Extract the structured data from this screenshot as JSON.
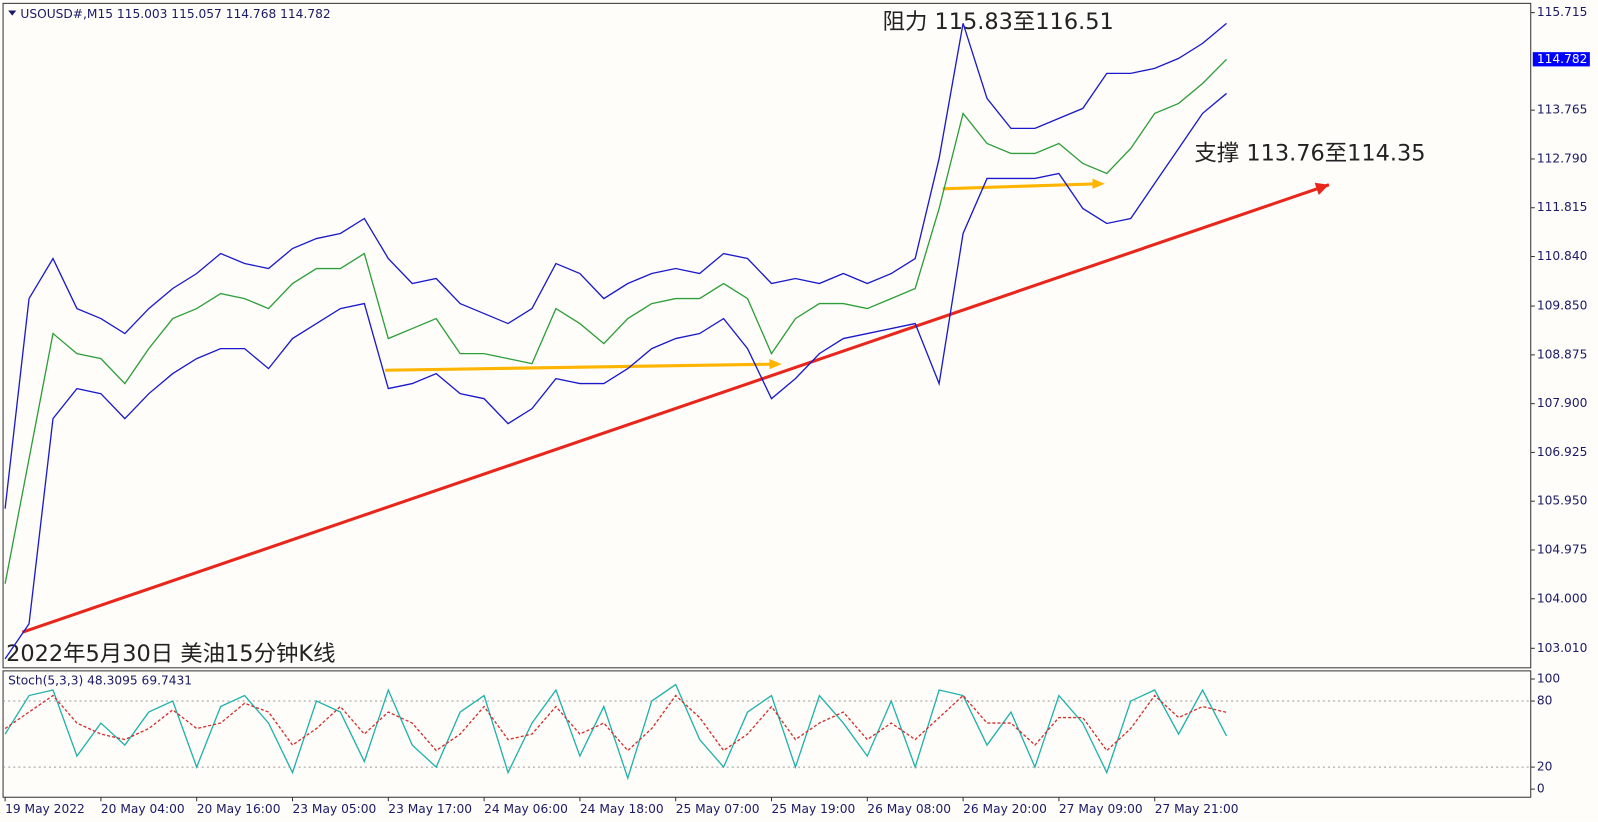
{
  "chart_data": [
    {
      "type": "line",
      "title": "USOUSD#,M15  115.003 115.057 114.768 114.782",
      "annotations": [
        "阻力 115.83至116.51",
        "支撑 113.76至114.35",
        "2022年5月30日 美油15分钟K线"
      ],
      "last_price": 114.782,
      "x": [
        0,
        1,
        2,
        3,
        4,
        5,
        6,
        7,
        8,
        9,
        10,
        11,
        12,
        13,
        14,
        15,
        16,
        17,
        18,
        19,
        20,
        21,
        22,
        23,
        24,
        25,
        26,
        27,
        28,
        29,
        30,
        31,
        32,
        33,
        34,
        35,
        36,
        37,
        38,
        39,
        40,
        41,
        42,
        43,
        44,
        45,
        46,
        47,
        48,
        49,
        50,
        51
      ],
      "xlim": [
        0,
        63.7
      ],
      "xticks": [
        {
          "value": 0,
          "label": "19 May 2022"
        },
        {
          "value": 4,
          "label": "20 May 04:00"
        },
        {
          "value": 8,
          "label": "20 May 16:00"
        },
        {
          "value": 12,
          "label": "23 May 05:00"
        },
        {
          "value": 16,
          "label": "23 May 17:00"
        },
        {
          "value": 20,
          "label": "24 May 06:00"
        },
        {
          "value": 24,
          "label": "24 May 18:00"
        },
        {
          "value": 28,
          "label": "25 May 07:00"
        },
        {
          "value": 32,
          "label": "25 May 19:00"
        },
        {
          "value": 36,
          "label": "26 May 08:00"
        },
        {
          "value": 40,
          "label": "26 May 20:00"
        },
        {
          "value": 44,
          "label": "27 May 09:00"
        },
        {
          "value": 48,
          "label": "27 May 21:00"
        }
      ],
      "ylim": [
        102.62,
        115.9
      ],
      "yticks": [
        {
          "value": 103.01,
          "label": "103.010"
        },
        {
          "value": 104,
          "label": "104.000"
        },
        104.975,
        {
          "value": 105.95,
          "label": "105.950"
        },
        106.925,
        {
          "value": 107.9,
          "label": "107.900"
        },
        108.875,
        {
          "value": 109.85,
          "label": "109.850"
        },
        {
          "value": 110.84,
          "label": "110.840"
        },
        111.815,
        {
          "value": 112.79,
          "label": "112.790"
        },
        113.765,
        115.715
      ],
      "grid": false,
      "series": [
        {
          "color": "#2e9e3a",
          "values": [
            104.3,
            106.8,
            109.3,
            108.9,
            108.8,
            108.3,
            109.0,
            109.6,
            109.8,
            110.1,
            110.0,
            109.8,
            110.3,
            110.6,
            110.6,
            110.9,
            109.2,
            109.4,
            109.6,
            108.9,
            108.9,
            108.8,
            108.7,
            109.8,
            109.5,
            109.1,
            109.6,
            109.9,
            110.0,
            110.0,
            110.3,
            110.0,
            108.9,
            109.6,
            109.9,
            109.9,
            109.8,
            110.0,
            110.2,
            111.8,
            113.7,
            113.1,
            112.9,
            112.9,
            113.1,
            112.7,
            112.5,
            113.0,
            113.7,
            113.9,
            114.3,
            114.782
          ]
        },
        {
          "color": "#1a1acc",
          "values": [
            105.8,
            110.0,
            110.8,
            109.8,
            109.6,
            109.3,
            109.8,
            110.2,
            110.5,
            110.9,
            110.7,
            110.6,
            111.0,
            111.2,
            111.3,
            111.6,
            110.8,
            110.3,
            110.4,
            109.9,
            109.7,
            109.5,
            109.8,
            110.7,
            110.5,
            110.0,
            110.3,
            110.5,
            110.6,
            110.5,
            110.9,
            110.8,
            110.3,
            110.4,
            110.3,
            110.5,
            110.3,
            110.5,
            110.8,
            112.8,
            115.5,
            114.0,
            113.4,
            113.4,
            113.6,
            113.8,
            114.5,
            114.5,
            114.6,
            114.8,
            115.1,
            115.5
          ]
        },
        {
          "color": "#1a1acc",
          "values": [
            102.8,
            103.5,
            107.6,
            108.2,
            108.1,
            107.6,
            108.1,
            108.5,
            108.8,
            109.0,
            109.0,
            108.6,
            109.2,
            109.5,
            109.8,
            109.9,
            108.2,
            108.3,
            108.5,
            108.1,
            108.0,
            107.5,
            107.8,
            108.4,
            108.3,
            108.3,
            108.6,
            109.0,
            109.2,
            109.3,
            109.6,
            109.0,
            108.0,
            108.4,
            108.9,
            109.2,
            109.3,
            109.4,
            109.5,
            108.3,
            111.3,
            112.4,
            112.4,
            112.4,
            112.5,
            111.8,
            111.5,
            111.6,
            112.3,
            113.0,
            113.7,
            114.1
          ]
        }
      ]
    },
    {
      "type": "line",
      "title": "Stoch(5,3,3) 48.3095 69.7431",
      "ylim": [
        -7.4,
        107.4
      ],
      "yticks": [
        100,
        80,
        20,
        0
      ],
      "levels": [
        80,
        20
      ],
      "series": [
        {
          "color": "#20b2aa",
          "values": [
            50,
            85,
            90,
            30,
            60,
            40,
            70,
            80,
            20,
            75,
            85,
            60,
            15,
            80,
            70,
            25,
            90,
            40,
            20,
            70,
            85,
            15,
            60,
            90,
            30,
            75,
            10,
            80,
            95,
            45,
            20,
            70,
            85,
            20,
            85,
            60,
            30,
            80,
            20,
            90,
            85,
            40,
            70,
            20,
            85,
            60,
            15,
            80,
            90,
            50,
            90,
            48.3095
          ]
        },
        {
          "color": "#d03030",
          "dashed": true,
          "values": [
            55,
            70,
            85,
            60,
            50,
            45,
            55,
            72,
            55,
            60,
            78,
            70,
            40,
            55,
            75,
            50,
            70,
            60,
            35,
            50,
            75,
            45,
            50,
            75,
            50,
            60,
            35,
            55,
            85,
            65,
            35,
            50,
            75,
            45,
            60,
            70,
            45,
            60,
            45,
            65,
            85,
            60,
            60,
            40,
            65,
            65,
            35,
            55,
            85,
            65,
            75,
            69.7431
          ]
        }
      ]
    }
  ]
}
